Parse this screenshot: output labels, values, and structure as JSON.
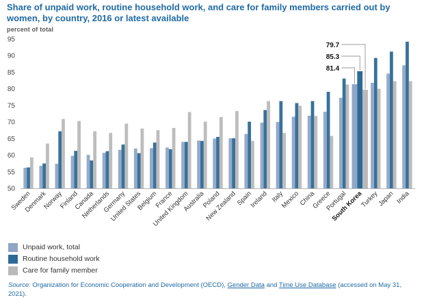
{
  "chart_data": {
    "type": "bar",
    "title": "Share of unpaid work, routine household work, and care for family members carried out by women, by country, 2016 or latest available",
    "ylabel": "percent of total",
    "ylim": [
      50,
      95
    ],
    "yticks": [
      50,
      55,
      60,
      65,
      70,
      75,
      80,
      85,
      90,
      95
    ],
    "grid": false,
    "legend_position": "bottom-left",
    "categories": [
      "Sweden",
      "Denmark",
      "Norway",
      "Finland",
      "Canada",
      "Netherlands",
      "Germany",
      "United States",
      "Belgium",
      "France",
      "United Kingdom",
      "Australia",
      "Poland",
      "New Zealand",
      "Spain",
      "Ireland",
      "Italy",
      "Mexico",
      "China",
      "Greece",
      "Portugal",
      "South Korea",
      "Turkey",
      "Japan",
      "India"
    ],
    "highlight_category": "South Korea",
    "series": [
      {
        "name": "Unpaid work, total",
        "color": "#8fa6c8",
        "values": [
          56.2,
          56.8,
          57.4,
          59.8,
          60.1,
          60.7,
          61.6,
          62.0,
          62.1,
          62.3,
          64.0,
          64.4,
          65.0,
          65.1,
          66.4,
          69.8,
          70.0,
          71.6,
          71.9,
          73.1,
          77.3,
          81.4,
          81.8,
          84.6,
          87.1
        ]
      },
      {
        "name": "Routine household work",
        "color": "#2e6a96",
        "values": [
          56.3,
          57.5,
          67.2,
          61.3,
          58.4,
          61.2,
          63.2,
          60.6,
          63.8,
          61.8,
          64.0,
          64.3,
          65.5,
          65.1,
          70.1,
          73.6,
          76.3,
          75.7,
          76.3,
          79.1,
          83.1,
          85.3,
          89.3,
          91.2,
          94.2
        ]
      },
      {
        "name": "Care for family member",
        "color": "#b9b9b9",
        "values": [
          59.3,
          63.5,
          70.9,
          70.3,
          67.2,
          66.7,
          69.5,
          68.0,
          67.5,
          68.2,
          73.0,
          70.1,
          71.5,
          73.3,
          64.3,
          76.3,
          66.7,
          74.9,
          71.8,
          65.8,
          81.3,
          79.7,
          80.0,
          82.3,
          82.3
        ]
      }
    ],
    "annotations": [
      {
        "category": "South Korea",
        "series": "Care for family member",
        "label": "79.7"
      },
      {
        "category": "South Korea",
        "series": "Routine household work",
        "label": "85.3"
      },
      {
        "category": "South Korea",
        "series": "Unpaid work, total",
        "label": "81.4"
      }
    ],
    "legend": [
      "Unpaid work, total",
      "Routine household work",
      "Care for family member"
    ]
  },
  "source": {
    "label": "Source:",
    "text_1": "Organization for Economic Cooperation and Development (OECD),",
    "link_1": "Gender Data",
    "text_2": "and",
    "link_2": "Time Use Database",
    "text_3": "(accessed on May 31, 2021)."
  }
}
